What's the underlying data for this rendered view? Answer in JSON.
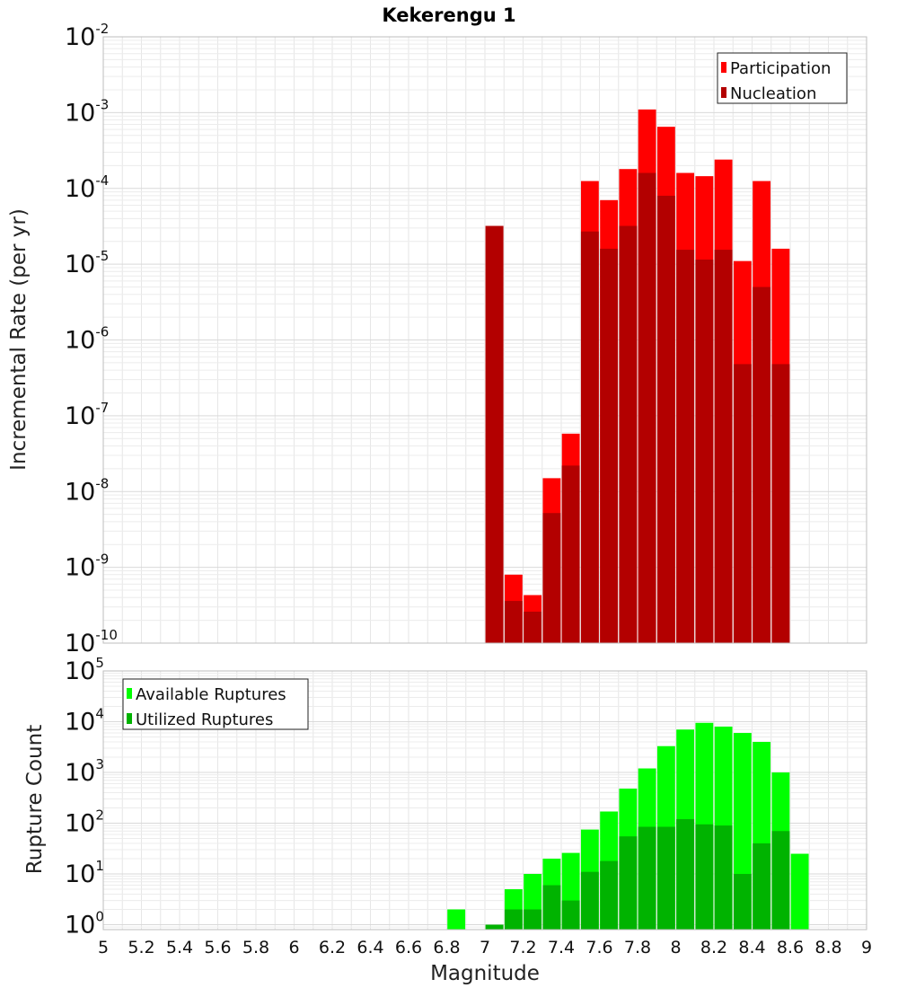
{
  "chart_data": [
    {
      "type": "bar",
      "title": "Kekerengu 1",
      "xlabel": "",
      "ylabel": "Incremental Rate (per yr)",
      "yscale": "log",
      "xlim": [
        5,
        9
      ],
      "ylim": [
        1e-10,
        0.01
      ],
      "grid": true,
      "legend_position": "top-right",
      "y_ticks": [
        {
          "base": "10",
          "exp": "-10"
        },
        {
          "base": "10",
          "exp": "-9"
        },
        {
          "base": "10",
          "exp": "-8"
        },
        {
          "base": "10",
          "exp": "-7"
        },
        {
          "base": "10",
          "exp": "-6"
        },
        {
          "base": "10",
          "exp": "-5"
        },
        {
          "base": "10",
          "exp": "-4"
        },
        {
          "base": "10",
          "exp": "-3"
        },
        {
          "base": "10",
          "exp": "-2"
        }
      ],
      "x": [
        7.05,
        7.15,
        7.25,
        7.35,
        7.45,
        7.55,
        7.65,
        7.75,
        7.85,
        7.95,
        8.05,
        8.15,
        8.25,
        8.35,
        8.45,
        8.55
      ],
      "series": [
        {
          "name": "Participation",
          "color": "#ff0000",
          "values": [
            3.2e-05,
            8e-10,
            4.3e-10,
            1.5e-08,
            5.8e-08,
            0.000125,
            7e-05,
            0.00018,
            0.0011,
            0.00065,
            0.00016,
            0.000145,
            0.00024,
            1.1e-05,
            0.000125,
            1.6e-05
          ]
        },
        {
          "name": "Nucleation",
          "color": "#b30000",
          "values": [
            3.2e-05,
            3.6e-10,
            2.6e-10,
            5.2e-09,
            2.2e-08,
            2.7e-05,
            1.6e-05,
            3.2e-05,
            0.00016,
            8e-05,
            1.55e-05,
            1.15e-05,
            1.55e-05,
            4.8e-07,
            5e-06,
            4.8e-07
          ]
        }
      ]
    },
    {
      "type": "bar",
      "title": "",
      "xlabel": "Magnitude",
      "ylabel": "Rupture Count",
      "yscale": "log",
      "xlim": [
        5,
        9
      ],
      "ylim": [
        0.8,
        100000.0
      ],
      "grid": true,
      "legend_position": "top-left",
      "x_ticks": [
        "5",
        "5.2",
        "5.4",
        "5.6",
        "5.8",
        "6",
        "6.2",
        "6.4",
        "6.6",
        "6.8",
        "7",
        "7.2",
        "7.4",
        "7.6",
        "7.8",
        "8",
        "8.2",
        "8.4",
        "8.6",
        "8.8",
        "9"
      ],
      "y_ticks": [
        {
          "base": "10",
          "exp": "0"
        },
        {
          "base": "10",
          "exp": "1"
        },
        {
          "base": "10",
          "exp": "2"
        },
        {
          "base": "10",
          "exp": "3"
        },
        {
          "base": "10",
          "exp": "4"
        },
        {
          "base": "10",
          "exp": "5"
        }
      ],
      "x": [
        6.85,
        7.05,
        7.15,
        7.25,
        7.35,
        7.45,
        7.55,
        7.65,
        7.75,
        7.85,
        7.95,
        8.05,
        8.15,
        8.25,
        8.35,
        8.45,
        8.55,
        8.65
      ],
      "series": [
        {
          "name": "Available Ruptures",
          "color": "#00ff00",
          "values": [
            2,
            1,
            5,
            10,
            20,
            26,
            75,
            170,
            480,
            1200,
            3300,
            7000,
            9500,
            8000,
            6000,
            4000,
            1000,
            25
          ]
        },
        {
          "name": "Utilized Ruptures",
          "color": "#00b300",
          "values": [
            0,
            1,
            2,
            2,
            6,
            3,
            11,
            18,
            55,
            85,
            85,
            120,
            95,
            90,
            10,
            40,
            70,
            0
          ]
        }
      ]
    }
  ]
}
